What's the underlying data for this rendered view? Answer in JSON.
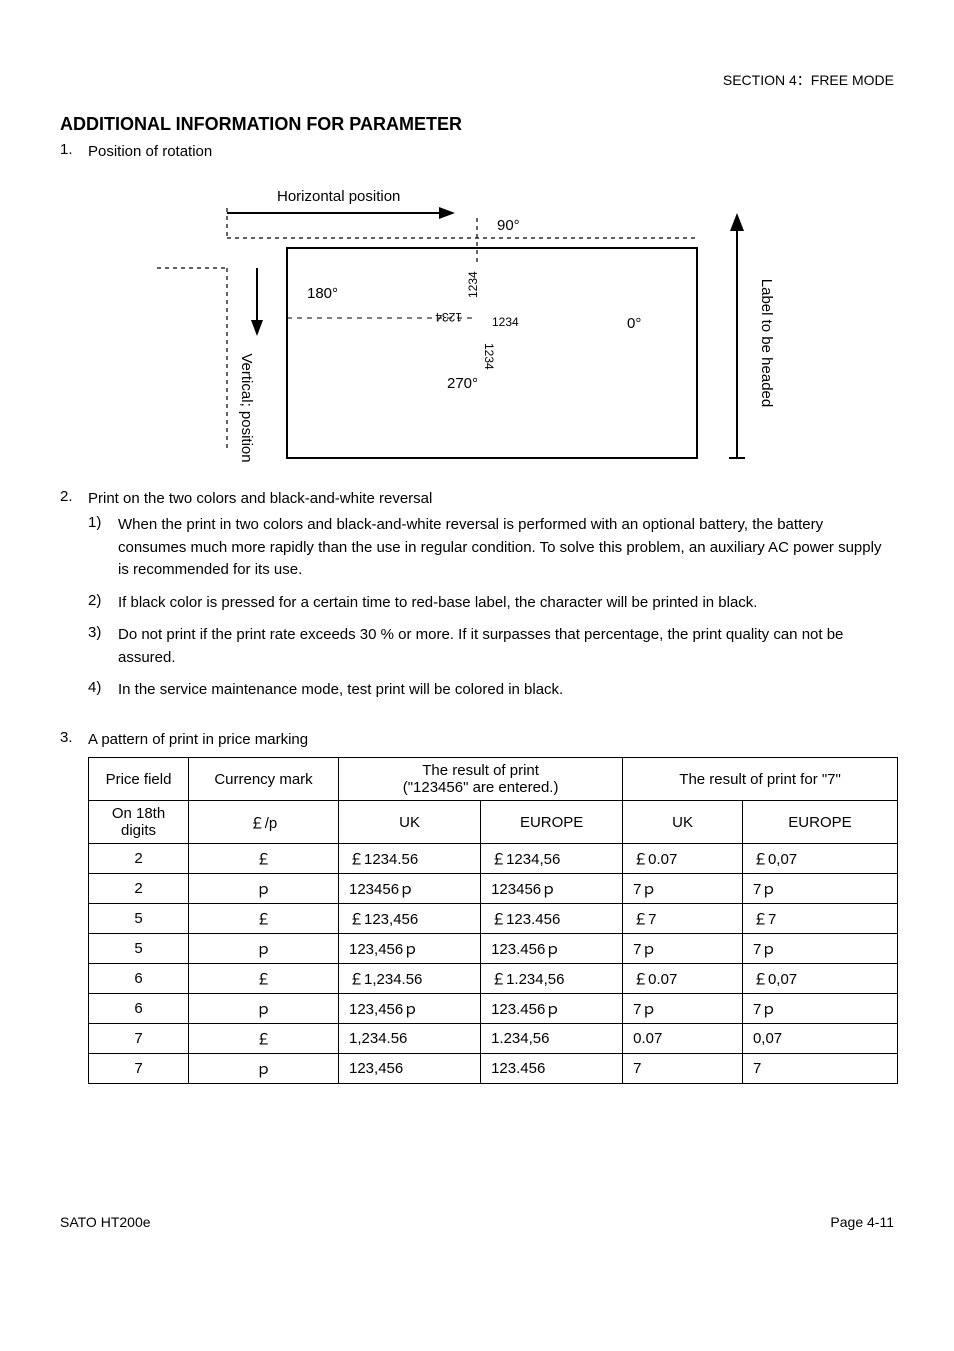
{
  "header": {
    "section": "SECTION 4：FREE MODE"
  },
  "heading": "ADDITIONAL INFORMATION FOR PARAMETER",
  "item1": {
    "num": "1.",
    "title": "Position of rotation",
    "diagram": {
      "horizontal_label": "Horizontal position",
      "vertical_label": "Vertical; position",
      "right_label": "Label to be headed",
      "deg90": "90°",
      "deg180": "180°",
      "deg270": "270°",
      "deg0": "0°",
      "sample_text": "1234"
    }
  },
  "item2": {
    "num": "2.",
    "title": "Print on the two colors and black-and-white reversal",
    "sub": [
      {
        "n": "1)",
        "t": "When the print in two colors and black-and-white reversal is performed with an optional battery, the battery consumes much more rapidly than the use in regular condition. To solve this problem, an auxiliary AC power supply is recommended for its use."
      },
      {
        "n": "2)",
        "t": "If black color is pressed for a certain time to red-base label, the character will be printed in black."
      },
      {
        "n": "3)",
        "t": "Do not print if the print rate exceeds 30 % or more. If it surpasses that percentage, the print quality can not be assured."
      },
      {
        "n": "4)",
        "t": "In the service maintenance mode, test print will be colored in black."
      }
    ]
  },
  "item3": {
    "num": "3.",
    "title": "A pattern of print in price marking"
  },
  "table": {
    "headers": {
      "price_field": "Price field",
      "currency_mark": "Currency mark",
      "result_print": "The result of print",
      "result_print_sub": "(\"123456\" are entered.)",
      "result_7": "The result of print for \"7\"",
      "uk": "UK",
      "europe": "EUROPE"
    },
    "rows": [
      {
        "pf": "On 18th digits",
        "cm": "￡/p",
        "uk1": "UK",
        "eu1": "EUROPE",
        "uk2": "UK",
        "eu2": "EUROPE",
        "is_header_row": true
      },
      {
        "pf": "2",
        "cm": "￡",
        "uk1": "￡1234.56",
        "eu1": "￡1234,56",
        "uk2": "￡0.07",
        "eu2": "￡0,07"
      },
      {
        "pf": "2",
        "cm": "ｐ",
        "uk1": "123456ｐ",
        "eu1": "123456ｐ",
        "uk2": "7ｐ",
        "eu2": "7ｐ"
      },
      {
        "pf": "5",
        "cm": "￡",
        "uk1": "￡123,456",
        "eu1": "￡123.456",
        "uk2": "￡7",
        "eu2": "￡7"
      },
      {
        "pf": "5",
        "cm": "ｐ",
        "uk1": "123,456ｐ",
        "eu1": "123.456ｐ",
        "uk2": "7ｐ",
        "eu2": "7ｐ"
      },
      {
        "pf": "6",
        "cm": "￡",
        "uk1": "￡1,234.56",
        "eu1": "￡1.234,56",
        "uk2": "￡0.07",
        "eu2": "￡0,07"
      },
      {
        "pf": "6",
        "cm": "ｐ",
        "uk1": "123,456ｐ",
        "eu1": "123.456ｐ",
        "uk2": "7ｐ",
        "eu2": "7ｐ"
      },
      {
        "pf": "7",
        "cm": "￡",
        "uk1": "1,234.56",
        "eu1": "1.234,56",
        "uk2": "0.07",
        "eu2": "0,07"
      },
      {
        "pf": "7",
        "cm": "ｐ",
        "uk1": "123,456",
        "eu1": "123.456",
        "uk2": "7",
        "eu2": "7"
      }
    ]
  },
  "footer": {
    "left": "SATO HT200e",
    "right": "Page 4-11"
  }
}
